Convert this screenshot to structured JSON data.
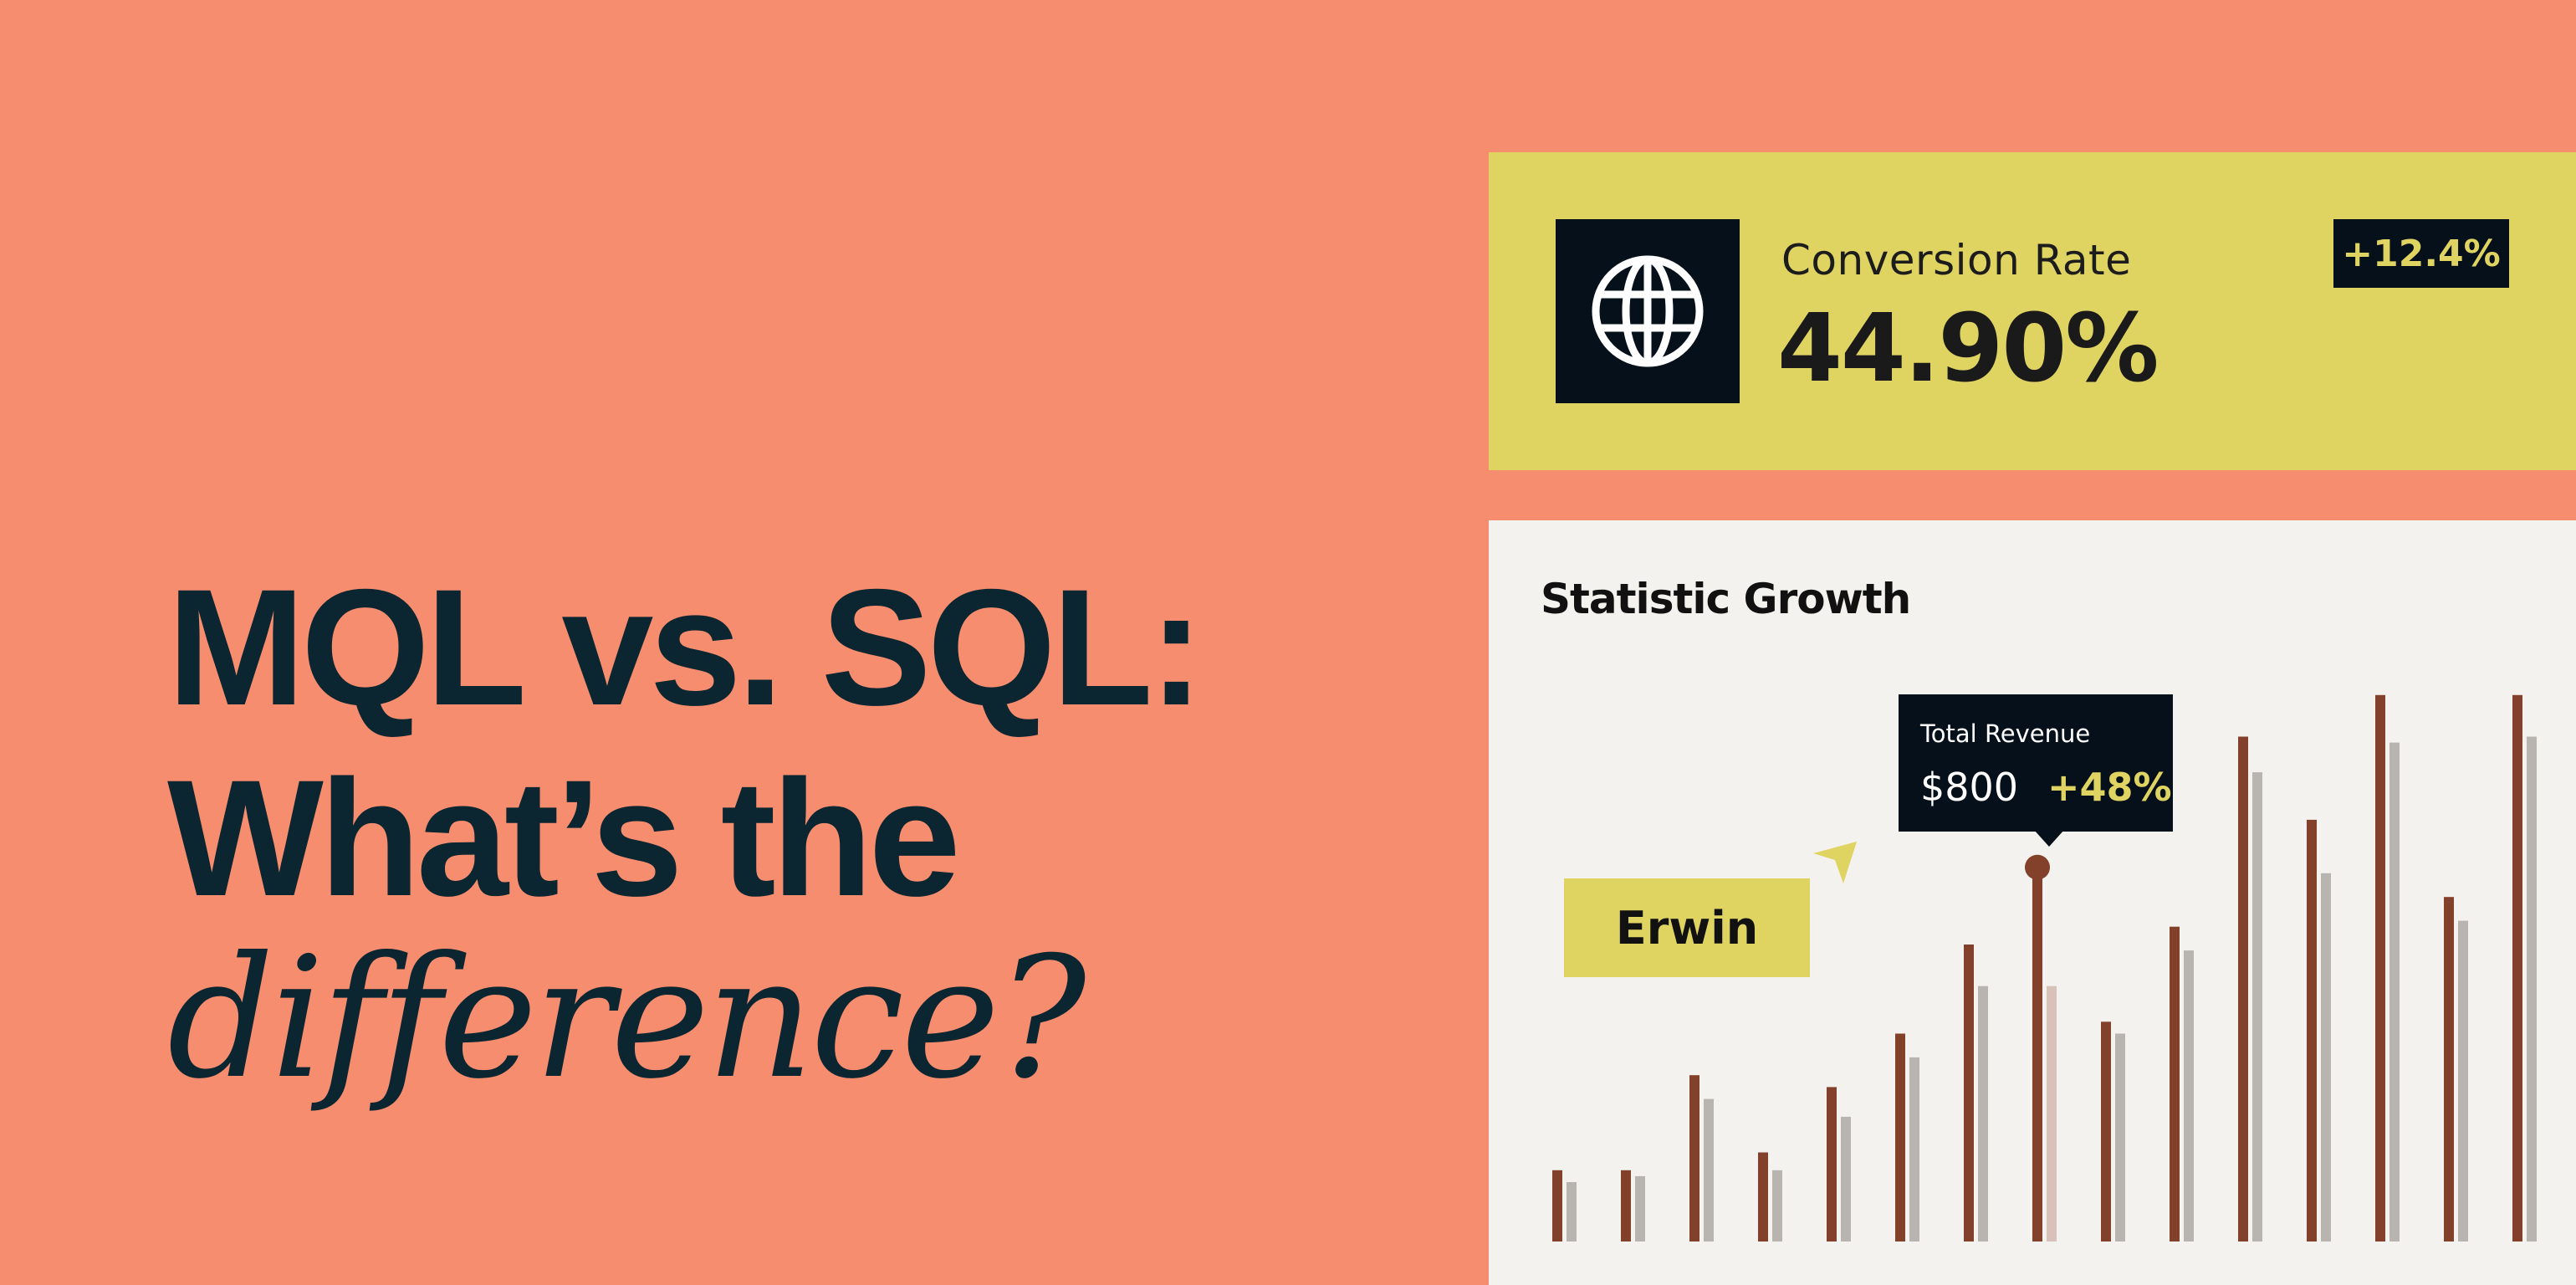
{
  "headline": {
    "line1": "MQL vs. SQL:",
    "line2": "What’s the",
    "line3": "difference?"
  },
  "kpi": {
    "icon": "globe-icon",
    "label": "Conversion Rate",
    "value": "44.90%",
    "change": "+12.4%"
  },
  "stats": {
    "title": "Statistic Growth",
    "tooltip": {
      "title": "Total Revenue",
      "amount": "$800",
      "change": "+48%"
    },
    "name_tag": "Erwin",
    "cursor_icon": "pointer-arrow-icon"
  },
  "colors": {
    "background": "#F68D6E",
    "accent_yellow": "#DFD362",
    "dark": "#06101A",
    "headline": "#0B2531",
    "bar_primary": "#83402A",
    "bar_secondary": "#B8B5B0",
    "panel": "#F4F2EE"
  },
  "chart_data": {
    "type": "bar",
    "ylim": [
      0,
      100
    ],
    "highlighted_index": 7,
    "series": [
      {
        "values": [
          12,
          12,
          28,
          15,
          26,
          35,
          50,
          63,
          37,
          53,
          85,
          71,
          92,
          58,
          92
        ]
      },
      {
        "values": [
          10,
          11,
          24,
          12,
          21,
          31,
          43,
          43,
          35,
          49,
          79,
          62,
          84,
          54,
          85
        ]
      }
    ]
  }
}
